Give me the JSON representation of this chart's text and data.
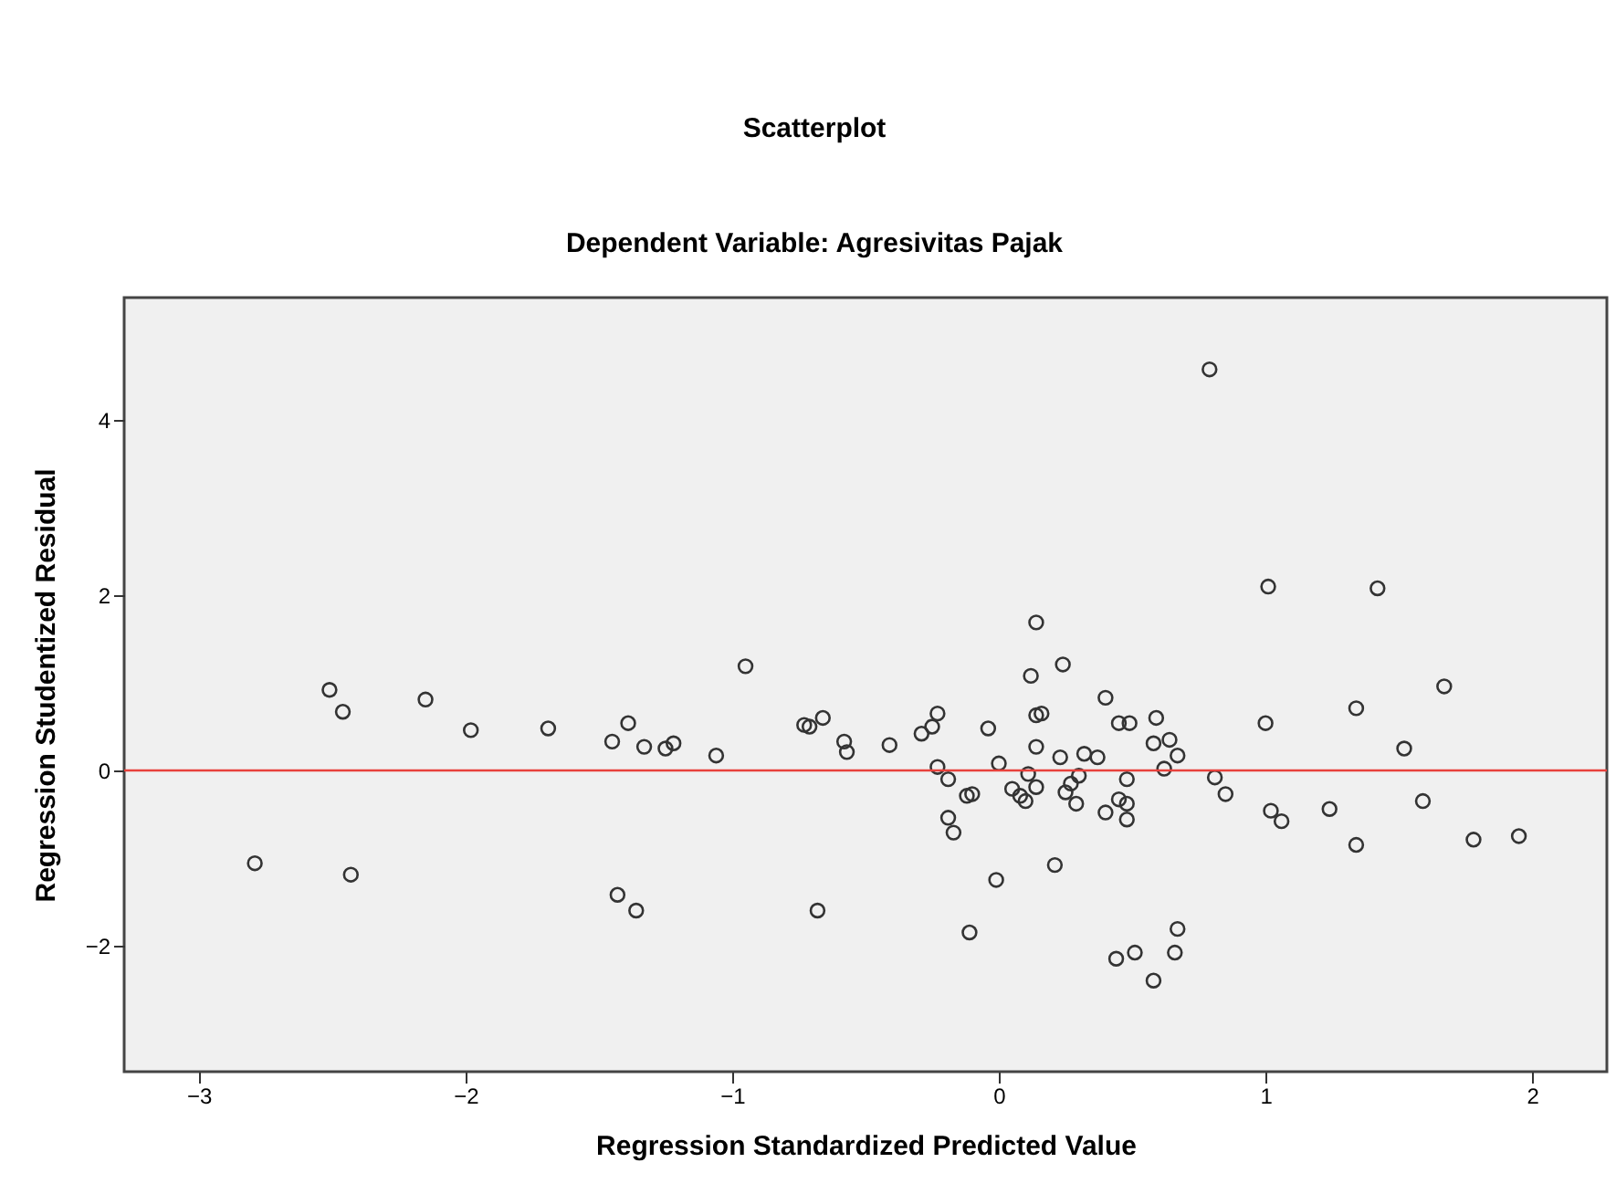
{
  "chart_data": {
    "type": "scatter",
    "title": "Scatterplot",
    "subtitle": "Dependent Variable: Agresivitas Pajak",
    "xlabel": "Regression Standardized Predicted Value",
    "ylabel": "Regression Studentized Residual",
    "marker": "circle",
    "xlim": [
      -3.28,
      2.28
    ],
    "xticks": [
      -3,
      -2,
      -1,
      0,
      1,
      2
    ],
    "ylim": [
      -3.44,
      5.4
    ],
    "yticks": [
      -2,
      0,
      2,
      4
    ],
    "ref_lines": [
      {
        "axis": "y",
        "value": 0,
        "color": "#e8413c"
      }
    ],
    "series": [
      {
        "color": "#333333",
        "x": [
          -2.79,
          -2.51,
          -2.46,
          -2.43,
          -2.15,
          -1.98,
          -1.69,
          -1.45,
          -1.39,
          -1.43,
          -1.36,
          -1.33,
          -1.25,
          -1.22,
          -1.06,
          -0.95,
          -0.73,
          -0.71,
          -0.66,
          -0.58,
          -0.57,
          -0.68,
          -0.41,
          -0.29,
          -0.25,
          -0.23,
          -0.23,
          -0.19,
          -0.12,
          -0.1,
          -0.19,
          -0.17,
          -0.11,
          -0.04,
          0.0,
          -0.01,
          0.05,
          0.08,
          0.1,
          0.11,
          0.14,
          0.14,
          0.12,
          0.14,
          0.14,
          0.16,
          0.21,
          0.23,
          0.24,
          0.25,
          0.27,
          0.29,
          0.3,
          0.32,
          0.37,
          0.4,
          0.4,
          0.44,
          0.45,
          0.45,
          0.48,
          0.48,
          0.48,
          0.49,
          0.51,
          0.58,
          0.58,
          0.59,
          0.62,
          0.64,
          0.66,
          0.67,
          0.67,
          0.79,
          0.81,
          0.85,
          1.0,
          1.01,
          1.02,
          1.06,
          1.24,
          1.34,
          1.34,
          1.42,
          1.52,
          1.59,
          1.67,
          1.78,
          1.95
        ],
        "values": [
          -1.06,
          0.92,
          0.67,
          -1.19,
          0.81,
          0.46,
          0.48,
          0.33,
          0.54,
          -1.42,
          -1.6,
          0.27,
          0.25,
          0.31,
          0.17,
          1.19,
          0.52,
          0.5,
          0.6,
          0.33,
          0.21,
          -1.6,
          0.29,
          0.42,
          0.5,
          0.65,
          0.04,
          -0.1,
          -0.29,
          -0.27,
          -0.54,
          -0.71,
          -1.85,
          0.48,
          0.08,
          -1.25,
          -0.21,
          -0.29,
          -0.35,
          -0.04,
          -0.19,
          0.27,
          1.08,
          1.69,
          0.63,
          0.65,
          -1.08,
          0.15,
          1.21,
          -0.25,
          -0.15,
          -0.38,
          -0.06,
          0.19,
          0.15,
          -0.48,
          0.83,
          -2.15,
          0.54,
          -0.33,
          -0.38,
          -0.56,
          -0.1,
          0.54,
          -2.08,
          -2.4,
          0.31,
          0.6,
          0.02,
          0.35,
          -2.08,
          -1.81,
          0.17,
          4.58,
          -0.08,
          -0.27,
          0.54,
          2.1,
          -0.46,
          -0.58,
          -0.44,
          0.71,
          -0.85,
          2.08,
          0.25,
          -0.35,
          0.96,
          -0.79,
          -0.75
        ]
      }
    ]
  }
}
